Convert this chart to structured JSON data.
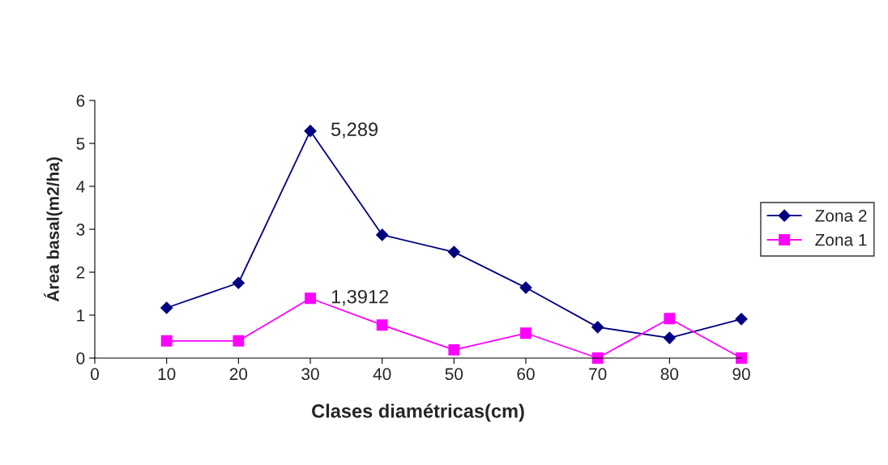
{
  "chart_data": {
    "type": "line",
    "xlabel": "Clases diamétricas(cm)",
    "ylabel": "Área basal(m2/ha)",
    "x": [
      10,
      20,
      30,
      40,
      50,
      60,
      70,
      80,
      90
    ],
    "series": [
      {
        "name": "Zona 2",
        "color": "#000080",
        "marker": "diamond",
        "values": [
          1.17,
          1.75,
          5.289,
          2.87,
          2.47,
          1.64,
          0.72,
          0.47,
          0.91
        ]
      },
      {
        "name": "Zona 1",
        "color": "#ff00ff",
        "marker": "square",
        "values": [
          0.4,
          0.4,
          1.3912,
          0.77,
          0.19,
          0.58,
          0,
          0.92,
          0
        ]
      }
    ],
    "annotations": [
      {
        "text": "5,289",
        "x": 30,
        "y": 5.289
      },
      {
        "text": "1,3912",
        "x": 30,
        "y": 1.3912
      }
    ],
    "xlim": [
      0,
      90
    ],
    "xticks": [
      0,
      10,
      20,
      30,
      40,
      50,
      60,
      70,
      80,
      90
    ],
    "ylim": [
      0,
      6
    ],
    "yticks": [
      0,
      1,
      2,
      3,
      4,
      5,
      6
    ],
    "grid": false,
    "legend": "right",
    "line_style": "solid"
  }
}
